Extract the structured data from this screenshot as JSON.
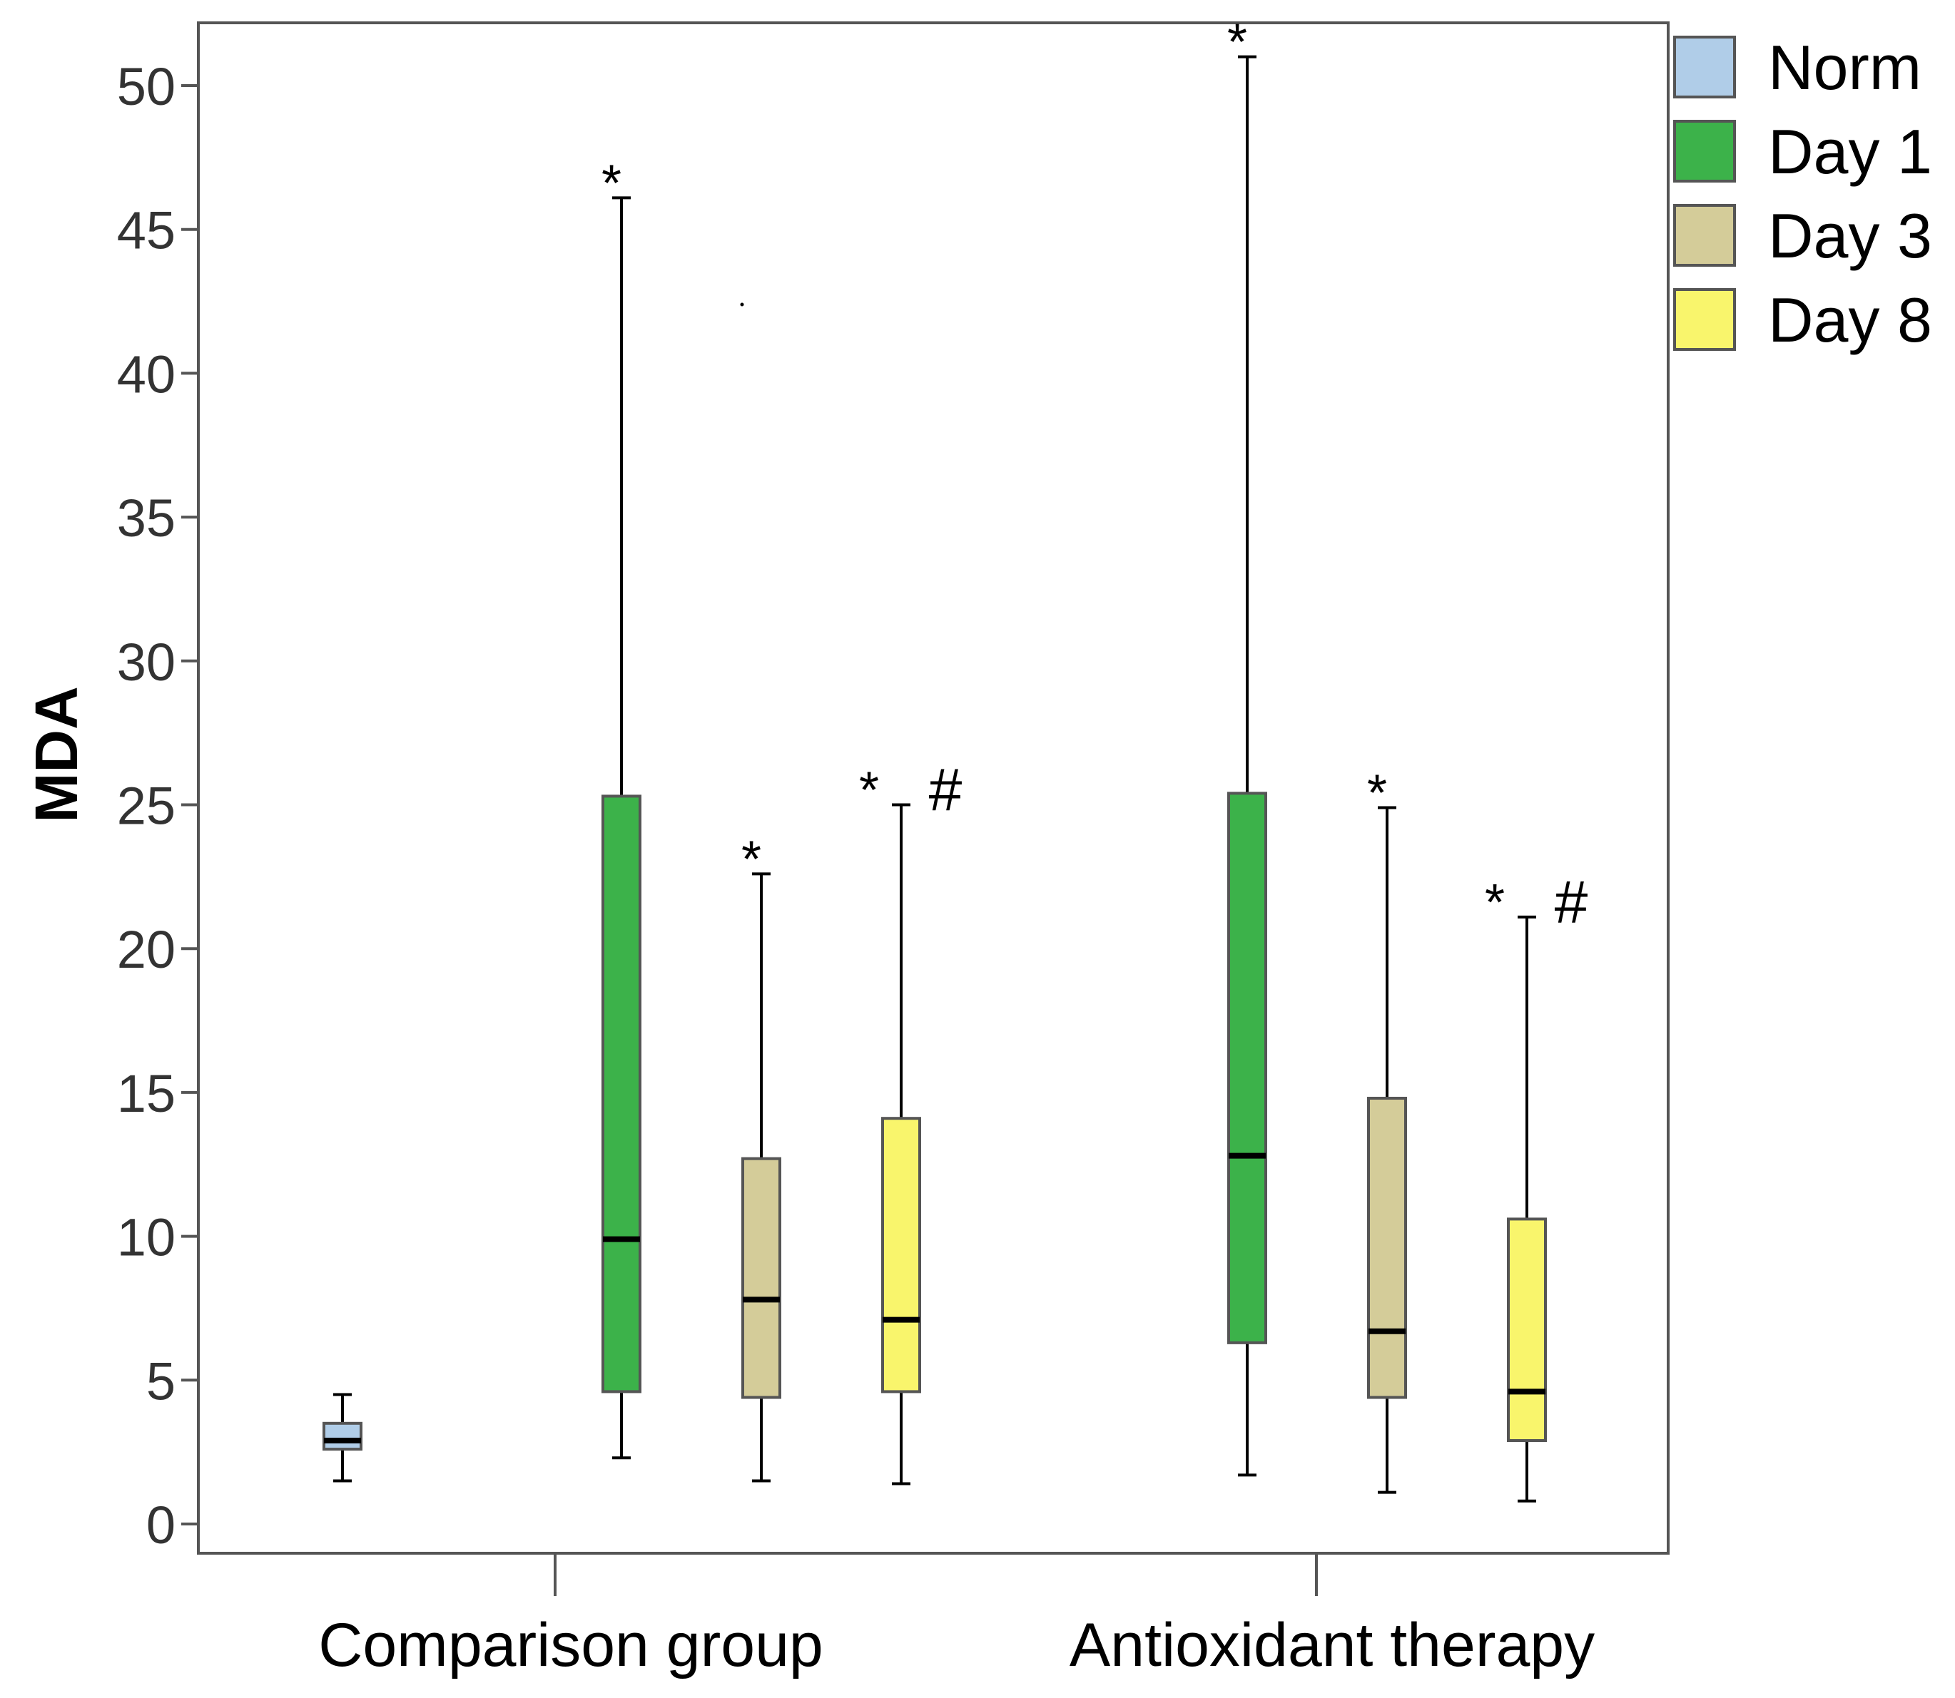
{
  "chart_data": {
    "type": "boxplot",
    "title": "",
    "xlabel": "",
    "ylabel": "MDA",
    "ylim": [
      -0.8,
      53.3
    ],
    "yticks": [
      0,
      5,
      10,
      15,
      20,
      25,
      30,
      35,
      40,
      45,
      50
    ],
    "groups": [
      "Comparison group",
      "Antioxidant therapy"
    ],
    "legend": [
      {
        "name": "Norm",
        "color": "#b0cde8"
      },
      {
        "name": "Day 1",
        "color": "#3cb24a"
      },
      {
        "name": "Day 3",
        "color": "#d4cc99"
      },
      {
        "name": "Day 8",
        "color": "#f9f56c"
      }
    ],
    "boxes": [
      {
        "group": "Comparison group",
        "series": "Norm",
        "min": 1.5,
        "q1": 2.6,
        "median": 2.9,
        "q3": 3.5,
        "max": 4.5,
        "annotation": ""
      },
      {
        "group": "Comparison group",
        "series": "Day 1",
        "min": 2.3,
        "q1": 4.6,
        "median": 9.9,
        "q3": 25.3,
        "max": 46.1,
        "annotation": "*"
      },
      {
        "group": "Comparison group",
        "series": "Day 3",
        "min": 1.5,
        "q1": 4.4,
        "median": 7.8,
        "q3": 12.7,
        "max": 22.6,
        "annotation": "*"
      },
      {
        "group": "Comparison group",
        "series": "Day 8",
        "min": 1.4,
        "q1": 4.6,
        "median": 7.1,
        "q3": 14.1,
        "max": 25.0,
        "annotation": "* #"
      },
      {
        "group": "Antioxidant therapy",
        "series": "Day 1",
        "min": 1.7,
        "q1": 6.3,
        "median": 12.8,
        "q3": 25.4,
        "max": 51.0,
        "annotation": "*"
      },
      {
        "group": "Antioxidant therapy",
        "series": "Day 3",
        "min": 1.1,
        "q1": 4.4,
        "median": 6.7,
        "q3": 14.8,
        "max": 24.9,
        "annotation": "*"
      },
      {
        "group": "Antioxidant therapy",
        "series": "Day 8",
        "min": 0.8,
        "q1": 2.9,
        "median": 4.6,
        "q3": 10.6,
        "max": 21.1,
        "annotation": "* #"
      }
    ]
  }
}
